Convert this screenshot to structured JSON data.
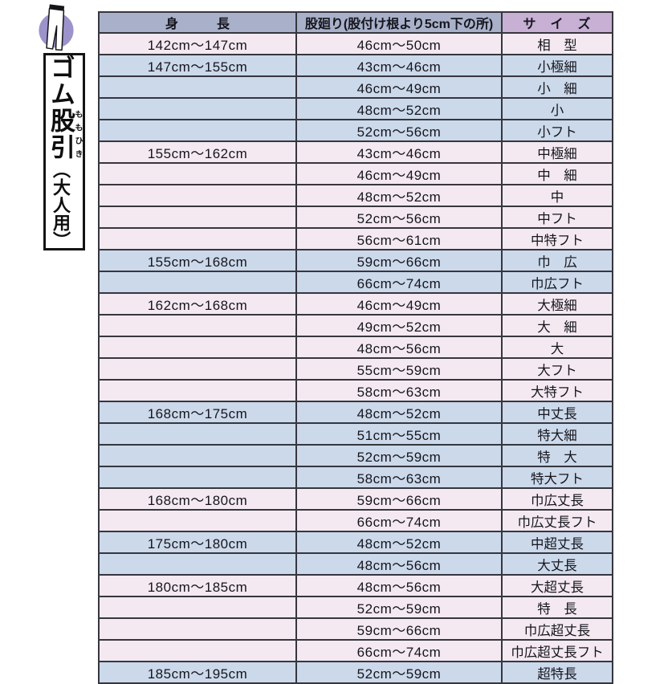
{
  "sidebar": {
    "icon_circle_color": "#9b93c9",
    "title_prefix": "ゴム",
    "title_main": "股引",
    "title_furigana": "ももひき",
    "title_suffix": "（大人用）"
  },
  "table": {
    "headers": [
      "身　　　長",
      "股廻り(股付け根より5cm下の所)",
      "サ　イ　ズ"
    ],
    "colors": {
      "header_bg": "#a9b1ca",
      "header_size_bg": "#c7b0d4",
      "row_pink": "#f4e9f1",
      "row_blue": "#cbd9ea",
      "border": "#36363e",
      "text": "#15151d"
    },
    "rows": [
      {
        "height": "142cm〜147cm",
        "girth": "46cm〜50cm",
        "size": "相　型",
        "tone": "pink"
      },
      {
        "height": "147cm〜155cm",
        "girth": "43cm〜46cm",
        "size": "小極細",
        "tone": "blue"
      },
      {
        "height": "",
        "girth": "46cm〜49cm",
        "size": "小　細",
        "tone": "blue"
      },
      {
        "height": "",
        "girth": "48cm〜52cm",
        "size": "小",
        "tone": "blue"
      },
      {
        "height": "",
        "girth": "52cm〜56cm",
        "size": "小フト",
        "tone": "blue"
      },
      {
        "height": "155cm〜162cm",
        "girth": "43cm〜46cm",
        "size": "中極細",
        "tone": "pink"
      },
      {
        "height": "",
        "girth": "46cm〜49cm",
        "size": "中　細",
        "tone": "pink"
      },
      {
        "height": "",
        "girth": "48cm〜52cm",
        "size": "中",
        "tone": "pink"
      },
      {
        "height": "",
        "girth": "52cm〜56cm",
        "size": "中フト",
        "tone": "pink"
      },
      {
        "height": "",
        "girth": "56cm〜61cm",
        "size": "中特フト",
        "tone": "pink"
      },
      {
        "height": "155cm〜168cm",
        "girth": "59cm〜66cm",
        "size": "巾　広",
        "tone": "blue"
      },
      {
        "height": "",
        "girth": "66cm〜74cm",
        "size": "巾広フト",
        "tone": "blue"
      },
      {
        "height": "162cm〜168cm",
        "girth": "46cm〜49cm",
        "size": "大極細",
        "tone": "pink"
      },
      {
        "height": "",
        "girth": "49cm〜52cm",
        "size": "大　細",
        "tone": "pink"
      },
      {
        "height": "",
        "girth": "48cm〜56cm",
        "size": "大",
        "tone": "pink"
      },
      {
        "height": "",
        "girth": "55cm〜59cm",
        "size": "大フト",
        "tone": "pink"
      },
      {
        "height": "",
        "girth": "58cm〜63cm",
        "size": "大特フト",
        "tone": "pink"
      },
      {
        "height": "168cm〜175cm",
        "girth": "48cm〜52cm",
        "size": "中丈長",
        "tone": "blue"
      },
      {
        "height": "",
        "girth": "51cm〜55cm",
        "size": "特大細",
        "tone": "blue"
      },
      {
        "height": "",
        "girth": "52cm〜59cm",
        "size": "特　大",
        "tone": "blue"
      },
      {
        "height": "",
        "girth": "58cm〜63cm",
        "size": "特大フト",
        "tone": "blue"
      },
      {
        "height": "168cm〜180cm",
        "girth": "59cm〜66cm",
        "size": "巾広丈長",
        "tone": "pink"
      },
      {
        "height": "",
        "girth": "66cm〜74cm",
        "size": "巾広丈長フト",
        "tone": "pink"
      },
      {
        "height": "175cm〜180cm",
        "girth": "48cm〜52cm",
        "size": "中超丈長",
        "tone": "blue"
      },
      {
        "height": "",
        "girth": "48cm〜56cm",
        "size": "大丈長",
        "tone": "blue"
      },
      {
        "height": "180cm〜185cm",
        "girth": "48cm〜56cm",
        "size": "大超丈長",
        "tone": "pink"
      },
      {
        "height": "",
        "girth": "52cm〜59cm",
        "size": "特　長",
        "tone": "pink"
      },
      {
        "height": "",
        "girth": "59cm〜66cm",
        "size": "巾広超丈長",
        "tone": "pink"
      },
      {
        "height": "",
        "girth": "66cm〜74cm",
        "size": "巾広超丈長フト",
        "tone": "pink"
      },
      {
        "height": "185cm〜195cm",
        "girth": "52cm〜59cm",
        "size": "超特長",
        "tone": "blue"
      }
    ]
  }
}
